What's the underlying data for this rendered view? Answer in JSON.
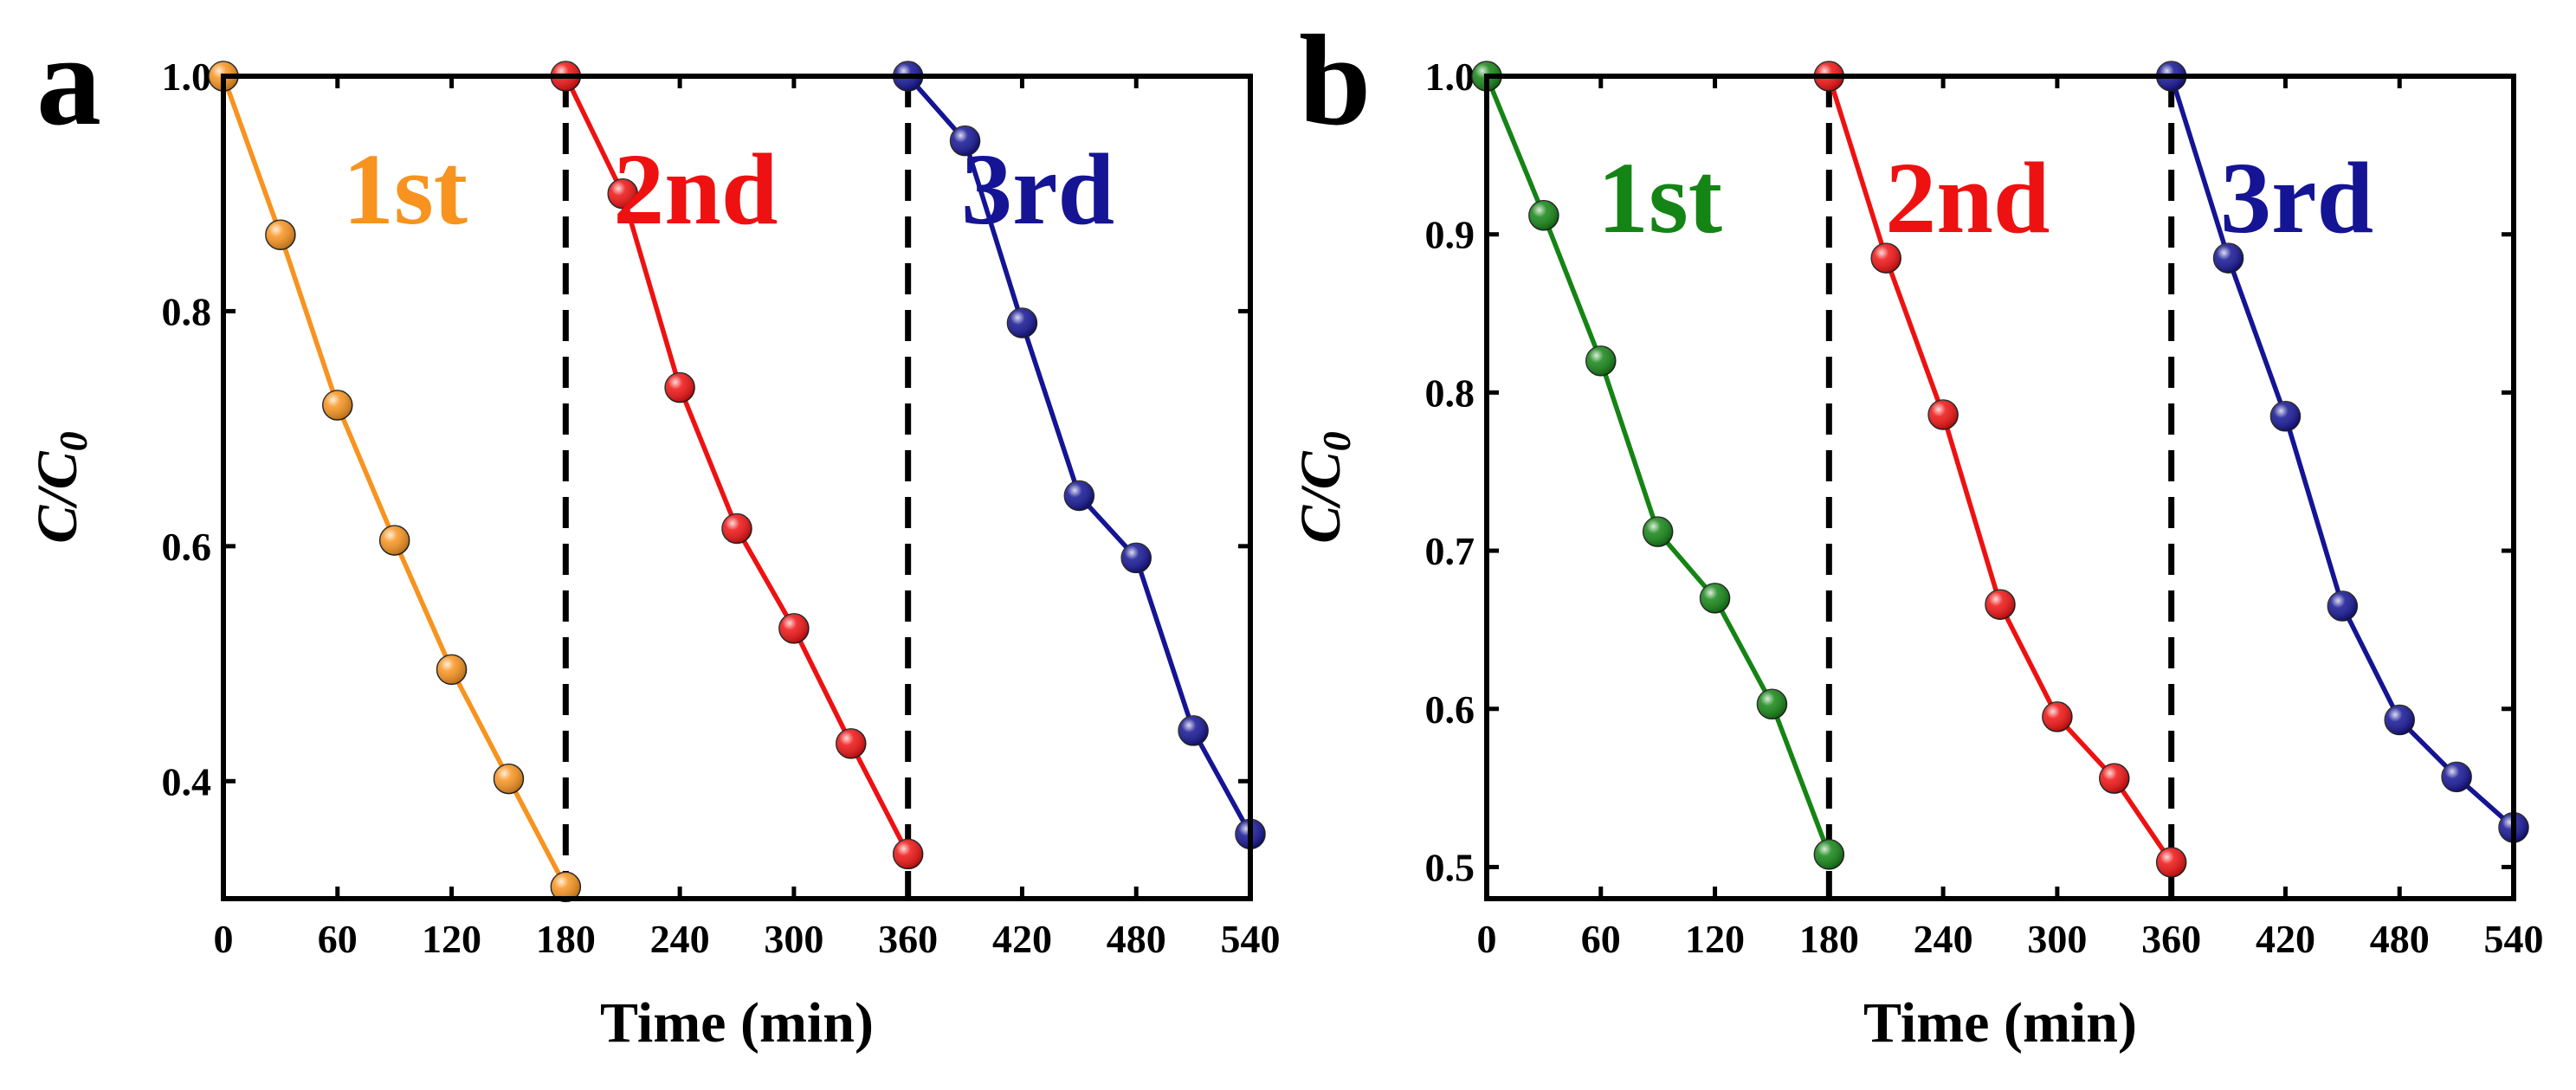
{
  "figure_labels": [
    "a",
    "b"
  ],
  "chart_data": [
    {
      "panel": "a",
      "type": "line",
      "title": "",
      "xlabel": "Time (min)",
      "ylabel": {
        "main": "C/C",
        "sub": "0"
      },
      "xlim": [
        0,
        540
      ],
      "ylim": [
        0.3,
        1.0
      ],
      "xticks": [
        0,
        60,
        120,
        180,
        240,
        300,
        360,
        420,
        480,
        540
      ],
      "xtick_labels": [
        "0",
        "60",
        "120",
        "180",
        "240",
        "300",
        "360",
        "420",
        "480",
        "540"
      ],
      "yticks": [
        0.4,
        0.6,
        0.8,
        1.0
      ],
      "ytick_labels": [
        "0.4",
        "0.6",
        "0.8",
        "1.0"
      ],
      "dividers_at": [
        180,
        360
      ],
      "series": [
        {
          "name": "1st",
          "color": "#F7931E",
          "x": [
            0,
            30,
            60,
            90,
            120,
            150,
            180
          ],
          "values": [
            1.0,
            0.865,
            0.72,
            0.605,
            0.495,
            0.402,
            0.31
          ]
        },
        {
          "name": "2nd",
          "color": "#EE1111",
          "x": [
            180,
            210,
            240,
            270,
            300,
            330,
            360
          ],
          "values": [
            1.0,
            0.9,
            0.735,
            0.615,
            0.53,
            0.432,
            0.338
          ]
        },
        {
          "name": "3rd",
          "color": "#141494",
          "x": [
            360,
            390,
            420,
            450,
            480,
            510,
            540
          ],
          "values": [
            1.0,
            0.945,
            0.79,
            0.643,
            0.59,
            0.443,
            0.355
          ]
        }
      ]
    },
    {
      "panel": "b",
      "type": "line",
      "title": "",
      "xlabel": "Time (min)",
      "ylabel": {
        "main": "C/C",
        "sub": "0"
      },
      "xlim": [
        0,
        540
      ],
      "ylim": [
        0.48,
        1.0
      ],
      "xticks": [
        0,
        60,
        120,
        180,
        240,
        300,
        360,
        420,
        480,
        540
      ],
      "xtick_labels": [
        "0",
        "60",
        "120",
        "180",
        "240",
        "300",
        "360",
        "420",
        "480",
        "540"
      ],
      "yticks": [
        0.5,
        0.6,
        0.7,
        0.8,
        0.9,
        1.0
      ],
      "ytick_labels": [
        "0.5",
        "0.6",
        "0.7",
        "0.8",
        "0.9",
        "1.0"
      ],
      "dividers_at": [
        180,
        360
      ],
      "series": [
        {
          "name": "1st",
          "color": "#148414",
          "x": [
            0,
            30,
            60,
            90,
            120,
            150,
            180
          ],
          "values": [
            1.0,
            0.912,
            0.82,
            0.712,
            0.67,
            0.603,
            0.508
          ]
        },
        {
          "name": "2nd",
          "color": "#EE1111",
          "x": [
            180,
            210,
            240,
            270,
            300,
            330,
            360
          ],
          "values": [
            1.0,
            0.885,
            0.786,
            0.666,
            0.595,
            0.556,
            0.503
          ]
        },
        {
          "name": "3rd",
          "color": "#141494",
          "x": [
            360,
            390,
            420,
            450,
            480,
            510,
            540
          ],
          "values": [
            1.0,
            0.885,
            0.785,
            0.665,
            0.593,
            0.557,
            0.525
          ]
        }
      ]
    }
  ]
}
